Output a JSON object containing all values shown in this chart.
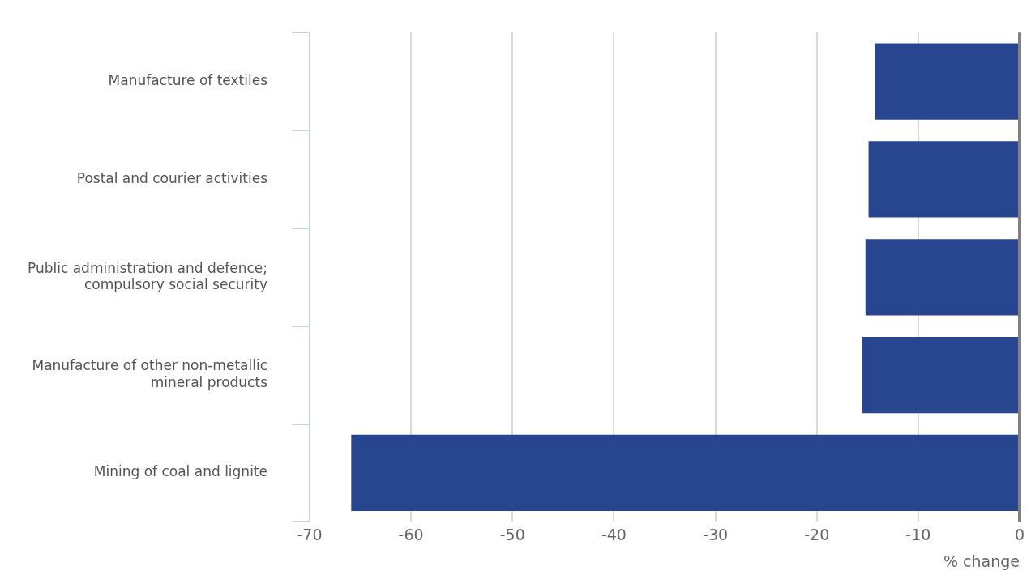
{
  "chart_data": {
    "type": "bar",
    "orientation": "horizontal",
    "xlabel": "% change",
    "categories": [
      "Manufacture of textiles",
      "Postal and courier activities",
      "Public administration and defence; compulsory social security",
      "Manufacture of other non-metallic mineral products",
      "Mining of coal and lignite"
    ],
    "values": [
      -14.3,
      -14.9,
      -15.2,
      -15.5,
      -65.9
    ],
    "color": "#27468f",
    "xlim": [
      -70,
      0
    ],
    "xticks": [
      -70,
      -60,
      -50,
      -40,
      -30,
      -20,
      -10,
      0
    ],
    "grid": "x",
    "legend": false
  }
}
